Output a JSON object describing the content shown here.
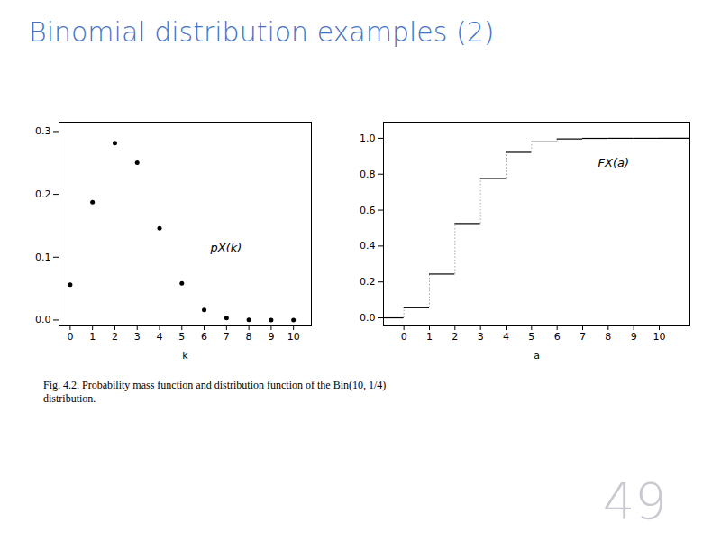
{
  "chart_data": [
    {
      "type": "scatter",
      "title": "Binomial distribution examples (2)",
      "caption": "Fig. 4.2. Probability mass function and distribution function of the Bin(10, 1/4)\ndistribution.",
      "x_label": "k",
      "annotations": [
        "pX(k)"
      ],
      "x": [
        0,
        1,
        2,
        3,
        4,
        5,
        6,
        7,
        8,
        9,
        10
      ],
      "values": [
        0.0563135,
        0.1877117,
        0.2815676,
        0.2502823,
        0.145998,
        0.0583992,
        0.016222,
        0.0030899,
        0.0003862,
        2.86e-05,
        1e-06
      ],
      "color": "#000000",
      "marker": "circle",
      "xlim": [
        -0.5,
        10.8
      ],
      "xticks": [
        0,
        1,
        2,
        3,
        4,
        5,
        6,
        7,
        8,
        9,
        10
      ],
      "ylim": [
        -0.008,
        0.315
      ],
      "yticks": [
        {
          "value": 0.0,
          "label": "0.0"
        },
        0.1,
        0.2,
        0.3
      ],
      "grid": false
    },
    {
      "type": "step",
      "x_label": "a",
      "annotations": [
        "FX(a)",
        "49"
      ],
      "x": [
        0,
        1,
        2,
        3,
        4,
        5,
        6,
        7,
        8,
        9,
        10
      ],
      "values": [
        0.0563135,
        0.2440252,
        0.5255928,
        0.7758751,
        0.9218731,
        0.9802723,
        0.9964943,
        0.9995842,
        0.9999704,
        0.999999,
        1.0
      ],
      "color": "#000000",
      "line_style": "solid",
      "xlim": [
        -0.8,
        11.2
      ],
      "xticks": [
        0,
        1,
        2,
        3,
        4,
        5,
        6,
        7,
        8,
        9,
        10
      ],
      "ylim": [
        -0.04,
        1.09
      ],
      "yticks": [
        {
          "value": 0.0,
          "label": "0.0"
        },
        0.2,
        0.4,
        0.6,
        0.8,
        {
          "value": 1.0,
          "label": "1.0"
        }
      ],
      "grid": false
    }
  ]
}
